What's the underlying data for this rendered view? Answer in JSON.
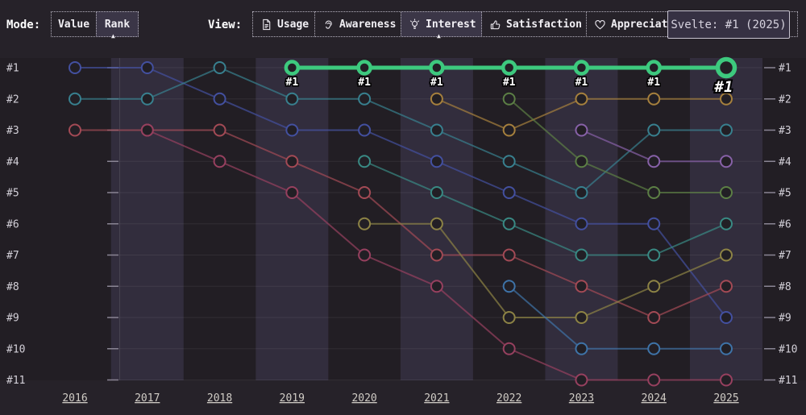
{
  "mode_bar": {
    "mode_label": "Mode:",
    "modes": [
      {
        "label": "Value",
        "selected": false
      },
      {
        "label": "Rank",
        "selected": true
      }
    ],
    "view_label": "View:",
    "views": [
      {
        "label": "Usage",
        "icon": "document-icon",
        "selected": false
      },
      {
        "label": "Awareness",
        "icon": "ear-icon",
        "selected": false
      },
      {
        "label": "Interest",
        "icon": "lightbulb-icon",
        "selected": true
      },
      {
        "label": "Satisfaction",
        "icon": "thumbs-up-icon",
        "selected": false
      },
      {
        "label": "Appreciation",
        "icon": "heart-icon",
        "selected": false
      }
    ]
  },
  "tooltip": {
    "text": "Svelte: #1 (2025)"
  },
  "chart_data": {
    "type": "line",
    "subtype": "bump-rank-chart",
    "years": [
      "2016",
      "2017",
      "2018",
      "2019",
      "2020",
      "2021",
      "2022",
      "2023",
      "2024",
      "2025"
    ],
    "rank_labels": [
      "#1",
      "#2",
      "#3",
      "#4",
      "#5",
      "#6",
      "#7",
      "#8",
      "#9",
      "#10",
      "#11"
    ],
    "ylim": [
      1,
      11
    ],
    "grid": true,
    "band_years": [
      "2017",
      "2019",
      "2021",
      "2023",
      "2025"
    ],
    "highlight_color": "#3dc97e",
    "series": [
      {
        "id": "indigo",
        "color": "#4350a0",
        "highlighted": false,
        "ranks": [
          1,
          1,
          2,
          3,
          3,
          4,
          5,
          6,
          6,
          9
        ]
      },
      {
        "id": "teal",
        "color": "#38808f",
        "highlighted": false,
        "ranks": [
          2,
          2,
          1,
          2,
          2,
          3,
          4,
          5,
          3,
          3
        ]
      },
      {
        "id": "red",
        "color": "#a34a55",
        "highlighted": false,
        "ranks": [
          3,
          3,
          3,
          4,
          5,
          7,
          7,
          8,
          9,
          8
        ]
      },
      {
        "id": "maroon",
        "color": "#97405f",
        "highlighted": false,
        "ranks": [
          null,
          3,
          4,
          5,
          7,
          8,
          10,
          11,
          11,
          11
        ]
      },
      {
        "id": "teal2",
        "color": "#398a84",
        "highlighted": false,
        "ranks": [
          null,
          null,
          null,
          null,
          4,
          5,
          6,
          7,
          7,
          6
        ]
      },
      {
        "id": "olive",
        "color": "#8d8345",
        "highlighted": false,
        "ranks": [
          null,
          null,
          null,
          null,
          6,
          6,
          9,
          9,
          8,
          7
        ]
      },
      {
        "id": "amber",
        "color": "#a6803d",
        "highlighted": false,
        "ranks": [
          null,
          null,
          null,
          null,
          null,
          2,
          3,
          2,
          2,
          2
        ]
      },
      {
        "id": "green2",
        "color": "#5c7f45",
        "highlighted": false,
        "ranks": [
          null,
          null,
          null,
          null,
          null,
          null,
          2,
          4,
          5,
          5
        ]
      },
      {
        "id": "blue2",
        "color": "#3e73a8",
        "highlighted": false,
        "ranks": [
          null,
          null,
          null,
          null,
          null,
          null,
          8,
          10,
          10,
          10
        ]
      },
      {
        "id": "purple",
        "color": "#8761a8",
        "highlighted": false,
        "ranks": [
          null,
          null,
          null,
          null,
          null,
          null,
          null,
          3,
          4,
          4
        ]
      },
      {
        "id": "svelte",
        "label": "Svelte",
        "color": "#3dc97e",
        "highlighted": true,
        "ranks": [
          null,
          null,
          null,
          1,
          1,
          1,
          1,
          1,
          1,
          1
        ]
      }
    ]
  }
}
